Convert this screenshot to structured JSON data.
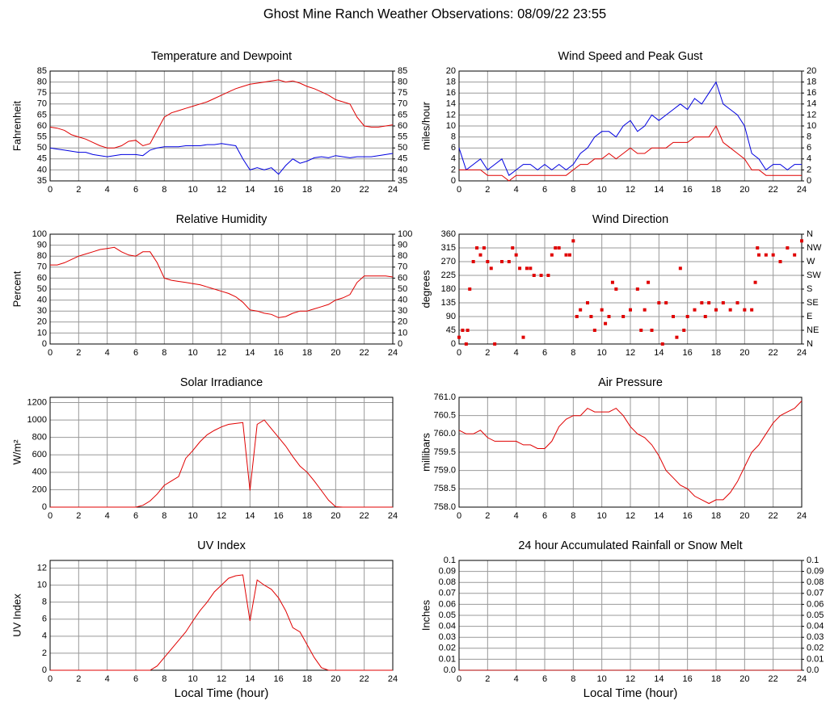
{
  "title": "Ghost Mine Ranch Weather Observations: 08/09/22 23:55",
  "chart_data": [
    {
      "type": "line",
      "title": "Temperature and Dewpoint",
      "y_label": "Fahrenheit",
      "x": [
        0,
        0.5,
        1,
        1.5,
        2,
        2.5,
        3,
        3.5,
        4,
        4.5,
        5,
        5.5,
        6,
        6.5,
        7,
        7.5,
        8,
        8.5,
        9,
        9.5,
        10,
        10.5,
        11,
        11.5,
        12,
        12.5,
        13,
        13.5,
        14,
        14.5,
        15,
        15.5,
        16,
        16.5,
        17,
        17.5,
        18,
        18.5,
        19,
        19.5,
        20,
        20.5,
        21,
        21.5,
        22,
        22.5,
        23,
        23.5,
        24
      ],
      "series": [
        {
          "color": "#e00000",
          "values": [
            59.5,
            59,
            58,
            56,
            55,
            54,
            52.5,
            51,
            50,
            50,
            51,
            53,
            53.5,
            51,
            52,
            58,
            64,
            66,
            67,
            68,
            69,
            70,
            71,
            72.5,
            74,
            75.5,
            77,
            78,
            79,
            79.5,
            80,
            80.5,
            81,
            80,
            80.5,
            79.5,
            78,
            77,
            75.5,
            74,
            72,
            71,
            70,
            64,
            60,
            59.5,
            59.5,
            60,
            60.5
          ]
        },
        {
          "color": "#0000e0",
          "values": [
            50,
            49.5,
            49,
            48.5,
            48,
            48,
            47,
            46.5,
            46,
            46.5,
            47,
            47,
            47,
            46.5,
            49,
            50,
            50.5,
            50.5,
            50.5,
            51,
            51,
            51,
            51.5,
            51.5,
            52,
            51.5,
            51,
            45,
            40,
            41,
            40,
            41,
            38,
            42,
            45,
            43,
            44,
            45.5,
            46,
            45.5,
            46.5,
            46,
            45.5,
            46,
            46,
            46,
            46.5,
            47,
            47.5
          ]
        }
      ],
      "xlim": [
        0,
        24
      ],
      "xticks": [
        0,
        2,
        4,
        6,
        8,
        10,
        12,
        14,
        16,
        18,
        20,
        22,
        24
      ],
      "ylim": [
        35,
        85
      ],
      "yticks": [
        35,
        40,
        45,
        50,
        55,
        60,
        65,
        70,
        75,
        80,
        85
      ],
      "y2lim": [
        35,
        85
      ],
      "y2ticks": [
        35,
        40,
        45,
        50,
        55,
        60,
        65,
        70,
        75,
        80,
        85
      ],
      "grid": true
    },
    {
      "type": "line",
      "title": "Wind Speed and Peak Gust",
      "y_label": "miles/hour",
      "x": [
        0,
        0.5,
        1,
        1.5,
        2,
        2.5,
        3,
        3.5,
        4,
        4.5,
        5,
        5.5,
        6,
        6.5,
        7,
        7.5,
        8,
        8.5,
        9,
        9.5,
        10,
        10.5,
        11,
        11.5,
        12,
        12.5,
        13,
        13.5,
        14,
        14.5,
        15,
        15.5,
        16,
        16.5,
        17,
        17.5,
        18,
        18.5,
        19,
        19.5,
        20,
        20.5,
        21,
        21.5,
        22,
        22.5,
        23,
        23.5,
        24
      ],
      "series": [
        {
          "color": "#0000e0",
          "values": [
            6,
            2,
            3,
            4,
            2,
            3,
            4,
            1,
            2,
            3,
            3,
            2,
            3,
            2,
            3,
            2,
            3,
            5,
            6,
            8,
            9,
            9,
            8,
            10,
            11,
            9,
            10,
            12,
            11,
            12,
            13,
            14,
            13,
            15,
            14,
            16,
            18,
            14,
            13,
            12,
            10,
            5,
            4,
            2,
            3,
            3,
            2,
            3,
            3
          ]
        },
        {
          "color": "#e00000",
          "values": [
            2,
            2,
            2,
            2,
            1,
            1,
            1,
            0,
            1,
            1,
            1,
            1,
            1,
            1,
            1,
            1,
            2,
            3,
            3,
            4,
            4,
            5,
            4,
            5,
            6,
            5,
            5,
            6,
            6,
            6,
            7,
            7,
            7,
            8,
            8,
            8,
            10,
            7,
            6,
            5,
            4,
            2,
            2,
            1,
            1,
            1,
            1,
            1,
            1
          ]
        }
      ],
      "xlim": [
        0,
        24
      ],
      "xticks": [
        0,
        2,
        4,
        6,
        8,
        10,
        12,
        14,
        16,
        18,
        20,
        22,
        24
      ],
      "ylim": [
        0,
        20
      ],
      "yticks": [
        0,
        2,
        4,
        6,
        8,
        10,
        12,
        14,
        16,
        18,
        20
      ],
      "y2lim": [
        0,
        20
      ],
      "y2ticks": [
        0,
        2,
        4,
        6,
        8,
        10,
        12,
        14,
        16,
        18,
        20
      ],
      "grid": true
    },
    {
      "type": "line",
      "title": "Relative Humidity",
      "y_label": "Percent",
      "x": [
        0,
        0.5,
        1,
        1.5,
        2,
        2.5,
        3,
        3.5,
        4,
        4.5,
        5,
        5.5,
        6,
        6.5,
        7,
        7.5,
        8,
        8.5,
        9,
        9.5,
        10,
        10.5,
        11,
        11.5,
        12,
        12.5,
        13,
        13.5,
        14,
        14.5,
        15,
        15.5,
        16,
        16.5,
        17,
        17.5,
        18,
        18.5,
        19,
        19.5,
        20,
        20.5,
        21,
        21.5,
        22,
        22.5,
        23,
        23.5,
        24
      ],
      "series": [
        {
          "color": "#e00000",
          "values": [
            72,
            72,
            74,
            77,
            80,
            82,
            84,
            86,
            87,
            88,
            84,
            81,
            80,
            84,
            84,
            74,
            60,
            58,
            57,
            56,
            55,
            54,
            52,
            50,
            48,
            46,
            43,
            38,
            31,
            30,
            28,
            27,
            24,
            25,
            28,
            30,
            30,
            32,
            34,
            36,
            40,
            42,
            45,
            56,
            62,
            62,
            62,
            62,
            61
          ]
        }
      ],
      "xlim": [
        0,
        24
      ],
      "xticks": [
        0,
        2,
        4,
        6,
        8,
        10,
        12,
        14,
        16,
        18,
        20,
        22,
        24
      ],
      "ylim": [
        0,
        100
      ],
      "yticks": [
        0,
        10,
        20,
        30,
        40,
        50,
        60,
        70,
        80,
        90,
        100
      ],
      "y2lim": [
        0,
        100
      ],
      "y2ticks": [
        0,
        10,
        20,
        30,
        40,
        50,
        60,
        70,
        80,
        90,
        100
      ],
      "grid": true
    },
    {
      "type": "scatter",
      "title": "Wind Direction",
      "y_label": "degrees",
      "x": [
        0,
        0.25,
        0.5,
        0.6,
        0.75,
        1,
        1.25,
        1.5,
        1.75,
        2,
        2.25,
        2.5,
        3,
        3.5,
        3.75,
        4,
        4.25,
        4.5,
        4.75,
        5,
        5.25,
        5.75,
        6.25,
        6.5,
        6.75,
        7,
        7.5,
        7.75,
        8,
        8.25,
        8.5,
        9,
        9.25,
        9.5,
        10,
        10.25,
        10.5,
        10.75,
        11,
        11.5,
        12,
        12.5,
        12.75,
        13,
        13.25,
        13.5,
        14,
        14.25,
        14.5,
        15,
        15.25,
        15.5,
        15.75,
        16,
        16.5,
        17,
        17.25,
        17.5,
        18,
        18.5,
        19,
        19.5,
        20,
        20.5,
        20.75,
        20.9,
        21,
        21.5,
        22,
        22.5,
        23,
        23.5,
        24
      ],
      "series": [
        {
          "color": "#e00000",
          "values": [
            22,
            45,
            0,
            45,
            180,
            270,
            315,
            292,
            315,
            270,
            248,
            0,
            270,
            270,
            315,
            292,
            248,
            22,
            248,
            248,
            225,
            225,
            225,
            292,
            315,
            315,
            292,
            292,
            338,
            90,
            112,
            135,
            90,
            45,
            112,
            67,
            90,
            202,
            180,
            90,
            112,
            180,
            45,
            112,
            202,
            45,
            135,
            0,
            135,
            90,
            22,
            248,
            45,
            90,
            112,
            135,
            90,
            135,
            112,
            135,
            112,
            135,
            112,
            112,
            202,
            315,
            292,
            292,
            292,
            270,
            315,
            292,
            338
          ]
        }
      ],
      "xlim": [
        0,
        24
      ],
      "xticks": [
        0,
        2,
        4,
        6,
        8,
        10,
        12,
        14,
        16,
        18,
        20,
        22,
        24
      ],
      "ylim": [
        0,
        360
      ],
      "yticks": [
        0,
        45,
        90,
        135,
        180,
        225,
        270,
        315,
        360
      ],
      "y2lim": [
        0,
        360
      ],
      "y2ticks": [
        {
          "value": 0,
          "label": "N"
        },
        {
          "value": 45,
          "label": "NE"
        },
        {
          "value": 90,
          "label": "E"
        },
        {
          "value": 135,
          "label": "SE"
        },
        {
          "value": 180,
          "label": "S"
        },
        {
          "value": 225,
          "label": "SW"
        },
        {
          "value": 270,
          "label": "W"
        },
        {
          "value": 315,
          "label": "NW"
        },
        {
          "value": 360,
          "label": "N"
        }
      ],
      "grid": true
    },
    {
      "type": "line",
      "title": "Solar Irradiance",
      "y_label": "W/m²",
      "x": [
        0,
        0.5,
        1,
        1.5,
        2,
        2.5,
        3,
        3.5,
        4,
        4.5,
        5,
        5.5,
        6,
        6.5,
        7,
        7.5,
        8,
        8.5,
        9,
        9.5,
        10,
        10.5,
        11,
        11.5,
        12,
        12.5,
        13,
        13.5,
        14,
        14.5,
        15,
        15.5,
        16,
        16.5,
        17,
        17.5,
        18,
        18.5,
        19,
        19.5,
        20,
        20.5,
        21,
        21.5,
        22,
        22.5,
        23,
        23.5,
        24
      ],
      "series": [
        {
          "color": "#e00000",
          "values": [
            0,
            0,
            0,
            0,
            0,
            0,
            0,
            0,
            0,
            0,
            0,
            0,
            0,
            20,
            70,
            150,
            250,
            300,
            350,
            560,
            650,
            750,
            830,
            880,
            920,
            950,
            960,
            970,
            190,
            950,
            1000,
            900,
            800,
            700,
            580,
            470,
            400,
            300,
            190,
            80,
            5,
            0,
            0,
            0,
            0,
            0,
            0,
            0,
            0
          ]
        }
      ],
      "xlim": [
        0,
        24
      ],
      "xticks": [
        0,
        2,
        4,
        6,
        8,
        10,
        12,
        14,
        16,
        18,
        20,
        22,
        24
      ],
      "ylim": [
        0,
        1260
      ],
      "yticks": [
        0,
        200,
        400,
        600,
        800,
        1000,
        1200
      ],
      "grid": true
    },
    {
      "type": "line",
      "title": "Air Pressure",
      "y_label": "millibars",
      "x": [
        0,
        0.5,
        1,
        1.5,
        2,
        2.5,
        3,
        3.5,
        4,
        4.5,
        5,
        5.5,
        6,
        6.5,
        7,
        7.5,
        8,
        8.5,
        9,
        9.5,
        10,
        10.5,
        11,
        11.5,
        12,
        12.5,
        13,
        13.5,
        14,
        14.5,
        15,
        15.5,
        16,
        16.5,
        17,
        17.5,
        18,
        18.5,
        19,
        19.5,
        20,
        20.5,
        21,
        21.5,
        22,
        22.5,
        23,
        23.5,
        24
      ],
      "series": [
        {
          "color": "#e00000",
          "values": [
            760.1,
            760.0,
            760.0,
            760.1,
            759.9,
            759.8,
            759.8,
            759.8,
            759.8,
            759.7,
            759.7,
            759.6,
            759.6,
            759.8,
            760.2,
            760.4,
            760.5,
            760.5,
            760.7,
            760.6,
            760.6,
            760.6,
            760.7,
            760.5,
            760.2,
            760.0,
            759.9,
            759.7,
            759.4,
            759.0,
            758.8,
            758.6,
            758.5,
            758.3,
            758.2,
            758.1,
            758.2,
            758.2,
            758.4,
            758.7,
            759.1,
            759.5,
            759.7,
            760.0,
            760.3,
            760.5,
            760.6,
            760.7,
            760.9
          ]
        }
      ],
      "xlim": [
        0,
        24
      ],
      "xticks": [
        0,
        2,
        4,
        6,
        8,
        10,
        12,
        14,
        16,
        18,
        20,
        22,
        24
      ],
      "ylim": [
        758,
        761
      ],
      "yticks": [
        {
          "value": 758,
          "label": "758.0"
        },
        758.5,
        {
          "value": 759,
          "label": "759.0"
        },
        759.5,
        {
          "value": 760,
          "label": "760.0"
        },
        760.5,
        {
          "value": 761,
          "label": "761.0"
        }
      ],
      "grid": true
    },
    {
      "type": "line",
      "title": "UV Index",
      "y_label": "UV Index",
      "x_label": "Local Time (hour)",
      "x": [
        0,
        0.5,
        1,
        1.5,
        2,
        2.5,
        3,
        3.5,
        4,
        4.5,
        5,
        5.5,
        6,
        6.5,
        7,
        7.5,
        8,
        8.5,
        9,
        9.5,
        10,
        10.5,
        11,
        11.5,
        12,
        12.5,
        13,
        13.5,
        14,
        14.5,
        15,
        15.5,
        16,
        16.5,
        17,
        17.5,
        18,
        18.5,
        19,
        19.5,
        20,
        20.5,
        21,
        21.5,
        22,
        22.5,
        23,
        23.5,
        24
      ],
      "series": [
        {
          "color": "#e00000",
          "values": [
            0,
            0,
            0,
            0,
            0,
            0,
            0,
            0,
            0,
            0,
            0,
            0,
            0,
            0,
            0,
            0.5,
            1.5,
            2.5,
            3.5,
            4.5,
            5.8,
            7,
            8,
            9.2,
            10,
            10.8,
            11.1,
            11.2,
            5.8,
            10.6,
            10,
            9.5,
            8.5,
            7,
            5,
            4.5,
            3,
            1.5,
            0.3,
            0,
            0,
            0,
            0,
            0,
            0,
            0,
            0,
            0,
            0
          ]
        }
      ],
      "xlim": [
        0,
        24
      ],
      "xticks": [
        0,
        2,
        4,
        6,
        8,
        10,
        12,
        14,
        16,
        18,
        20,
        22,
        24
      ],
      "ylim": [
        0,
        12.9
      ],
      "yticks": [
        0,
        2,
        4,
        6,
        8,
        10,
        12
      ],
      "grid": true
    },
    {
      "type": "line",
      "title": "24 hour Accumulated Rainfall or Snow Melt",
      "y_label": "Inches",
      "x_label": "Local Time (hour)",
      "x": [
        0,
        24
      ],
      "series": [
        {
          "color": "#b00000",
          "values": [
            0,
            0
          ]
        }
      ],
      "xlim": [
        0,
        24
      ],
      "xticks": [
        0,
        2,
        4,
        6,
        8,
        10,
        12,
        14,
        16,
        18,
        20,
        22,
        24
      ],
      "ylim": [
        0,
        0.1
      ],
      "yticks": [
        {
          "value": 0,
          "label": "0.0"
        },
        0.01,
        0.02,
        0.03,
        0.04,
        0.05,
        0.06,
        0.07,
        0.08,
        0.09,
        0.1
      ],
      "y2lim": [
        0,
        0.1
      ],
      "y2ticks": [
        {
          "value": 0,
          "label": "0.0"
        },
        0.01,
        0.02,
        0.03,
        0.04,
        0.05,
        0.06,
        0.07,
        0.08,
        0.09,
        0.1
      ],
      "grid": true
    }
  ]
}
